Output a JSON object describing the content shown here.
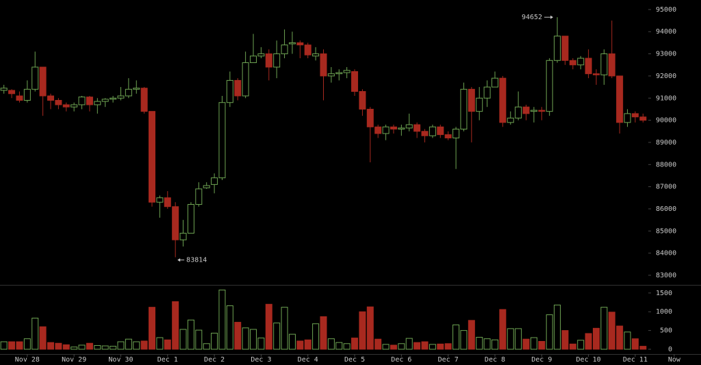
{
  "chart_data": [
    {
      "type": "candlestick",
      "up_color": "#6fa553",
      "down_color": "#a8291f",
      "open": [
        91350,
        91350,
        91100,
        90900,
        91400,
        92400,
        91100,
        90900,
        90700,
        90600,
        90700,
        91050,
        90700,
        90850,
        90950,
        91000,
        91100,
        91400,
        91450,
        90400,
        86300,
        86500,
        86100,
        84600,
        84900,
        86200,
        86950,
        87100,
        87400,
        90800,
        91800,
        91100,
        92600,
        92900,
        93000,
        92400,
        93000,
        93450,
        93500,
        93400,
        92900,
        93000,
        92000,
        92100,
        92150,
        92200,
        91300,
        90500,
        89700,
        89400,
        89700,
        89600,
        89650,
        89800,
        89500,
        89300,
        89700,
        89350,
        89200,
        89600,
        91400,
        90400,
        91000,
        91500,
        91900,
        89900,
        90100,
        90600,
        90400,
        90450,
        90400,
        92700,
        93800,
        92700,
        92500,
        92800,
        92100,
        92050,
        93000,
        92000,
        89900,
        90300,
        90150
      ],
      "high": [
        91600,
        91400,
        91300,
        91800,
        93100,
        92400,
        91200,
        91000,
        90800,
        90800,
        91100,
        91100,
        91000,
        91000,
        91100,
        91500,
        91900,
        91800,
        91500,
        90400,
        86600,
        86800,
        86300,
        85500,
        86300,
        87200,
        87200,
        87600,
        91100,
        92200,
        91900,
        93100,
        93900,
        93300,
        93200,
        93600,
        94100,
        94000,
        93600,
        93500,
        93300,
        93200,
        92400,
        92300,
        92400,
        92300,
        91400,
        90600,
        89800,
        89800,
        89800,
        89800,
        90300,
        89900,
        89600,
        89800,
        89800,
        89500,
        89700,
        91700,
        91500,
        91500,
        91800,
        92200,
        92000,
        90400,
        91300,
        90700,
        90600,
        90600,
        92800,
        94652,
        93800,
        92800,
        92900,
        93200,
        92300,
        93200,
        94500,
        92000,
        90500,
        90400,
        90300
      ],
      "low": [
        91200,
        91000,
        90800,
        90800,
        91300,
        90200,
        90500,
        90500,
        90400,
        90400,
        90500,
        90400,
        90300,
        90600,
        90800,
        90900,
        91000,
        91200,
        90300,
        86100,
        85600,
        86000,
        83814,
        84300,
        85000,
        86100,
        86900,
        86700,
        87300,
        90600,
        90900,
        91000,
        92600,
        92800,
        91800,
        91900,
        92800,
        93000,
        92800,
        92800,
        92700,
        90900,
        91700,
        91800,
        91900,
        91100,
        90200,
        88100,
        89200,
        89100,
        89400,
        89300,
        89500,
        89200,
        89000,
        89200,
        89200,
        89100,
        87800,
        89500,
        89000,
        90000,
        90600,
        91500,
        89700,
        89800,
        90000,
        90000,
        89900,
        90000,
        90200,
        92600,
        92500,
        92300,
        92300,
        91900,
        91600,
        91600,
        91900,
        89400,
        89700,
        89900,
        89900
      ],
      "close": [
        91450,
        91200,
        90900,
        91400,
        92400,
        91100,
        90900,
        90700,
        90600,
        90700,
        91050,
        90700,
        90850,
        90950,
        91000,
        91100,
        91400,
        91450,
        90400,
        86300,
        86500,
        86100,
        84600,
        84900,
        86200,
        86900,
        87050,
        87400,
        90800,
        91800,
        91100,
        92600,
        92900,
        93000,
        92400,
        93000,
        93400,
        93500,
        93400,
        92950,
        93000,
        92000,
        92100,
        92150,
        92250,
        91300,
        90500,
        89700,
        89400,
        89700,
        89600,
        89650,
        89800,
        89500,
        89300,
        89700,
        89350,
        89200,
        89600,
        91400,
        90400,
        91000,
        91500,
        91900,
        89900,
        90100,
        90600,
        90300,
        90450,
        90400,
        92700,
        93800,
        92700,
        92500,
        92800,
        92100,
        92050,
        93000,
        92000,
        89900,
        90300,
        90150,
        90000
      ],
      "xlim": [
        -0.5,
        82.5
      ],
      "xticks": [
        {
          "value": 3,
          "label": "Nov 28"
        },
        {
          "value": 9,
          "label": "Nov 29"
        },
        {
          "value": 15,
          "label": "Nov 30"
        },
        {
          "value": 21,
          "label": "Dec 1"
        },
        {
          "value": 27,
          "label": "Dec 2"
        },
        {
          "value": 33,
          "label": "Dec 3"
        },
        {
          "value": 39,
          "label": "Dec 4"
        },
        {
          "value": 45,
          "label": "Dec 5"
        },
        {
          "value": 51,
          "label": "Dec 6"
        },
        {
          "value": 57,
          "label": "Dec 7"
        },
        {
          "value": 63,
          "label": "Dec 8"
        },
        {
          "value": 69,
          "label": "Dec 9"
        },
        {
          "value": 75,
          "label": "Dec 10"
        },
        {
          "value": 81,
          "label": "Dec 11"
        },
        {
          "value": 86,
          "label": "Now"
        }
      ],
      "ylim": [
        82690,
        95430
      ],
      "yticks": [
        83000,
        84000,
        85000,
        86000,
        87000,
        88000,
        89000,
        90000,
        91000,
        92000,
        93000,
        94000,
        95000
      ],
      "annotations": [
        {
          "value": 94652,
          "label": "94652"
        },
        {
          "value": 83814,
          "label": "83814"
        }
      ]
    },
    {
      "type": "bar",
      "values": [
        200,
        200,
        200,
        280,
        830,
        600,
        180,
        160,
        120,
        60,
        110,
        160,
        100,
        90,
        80,
        200,
        270,
        200,
        220,
        1120,
        310,
        250,
        1270,
        530,
        780,
        510,
        150,
        430,
        1580,
        1160,
        720,
        570,
        530,
        300,
        1200,
        700,
        1120,
        400,
        220,
        250,
        680,
        870,
        280,
        180,
        150,
        300,
        1000,
        1130,
        270,
        130,
        110,
        150,
        290,
        180,
        200,
        130,
        140,
        150,
        650,
        500,
        770,
        320,
        280,
        250,
        1060,
        550,
        550,
        270,
        310,
        210,
        920,
        1180,
        500,
        140,
        240,
        420,
        560,
        1120,
        990,
        620,
        460,
        280,
        80
      ],
      "ylim": [
        0,
        1680
      ],
      "yticks": [
        0,
        500,
        1000,
        1500
      ]
    }
  ]
}
